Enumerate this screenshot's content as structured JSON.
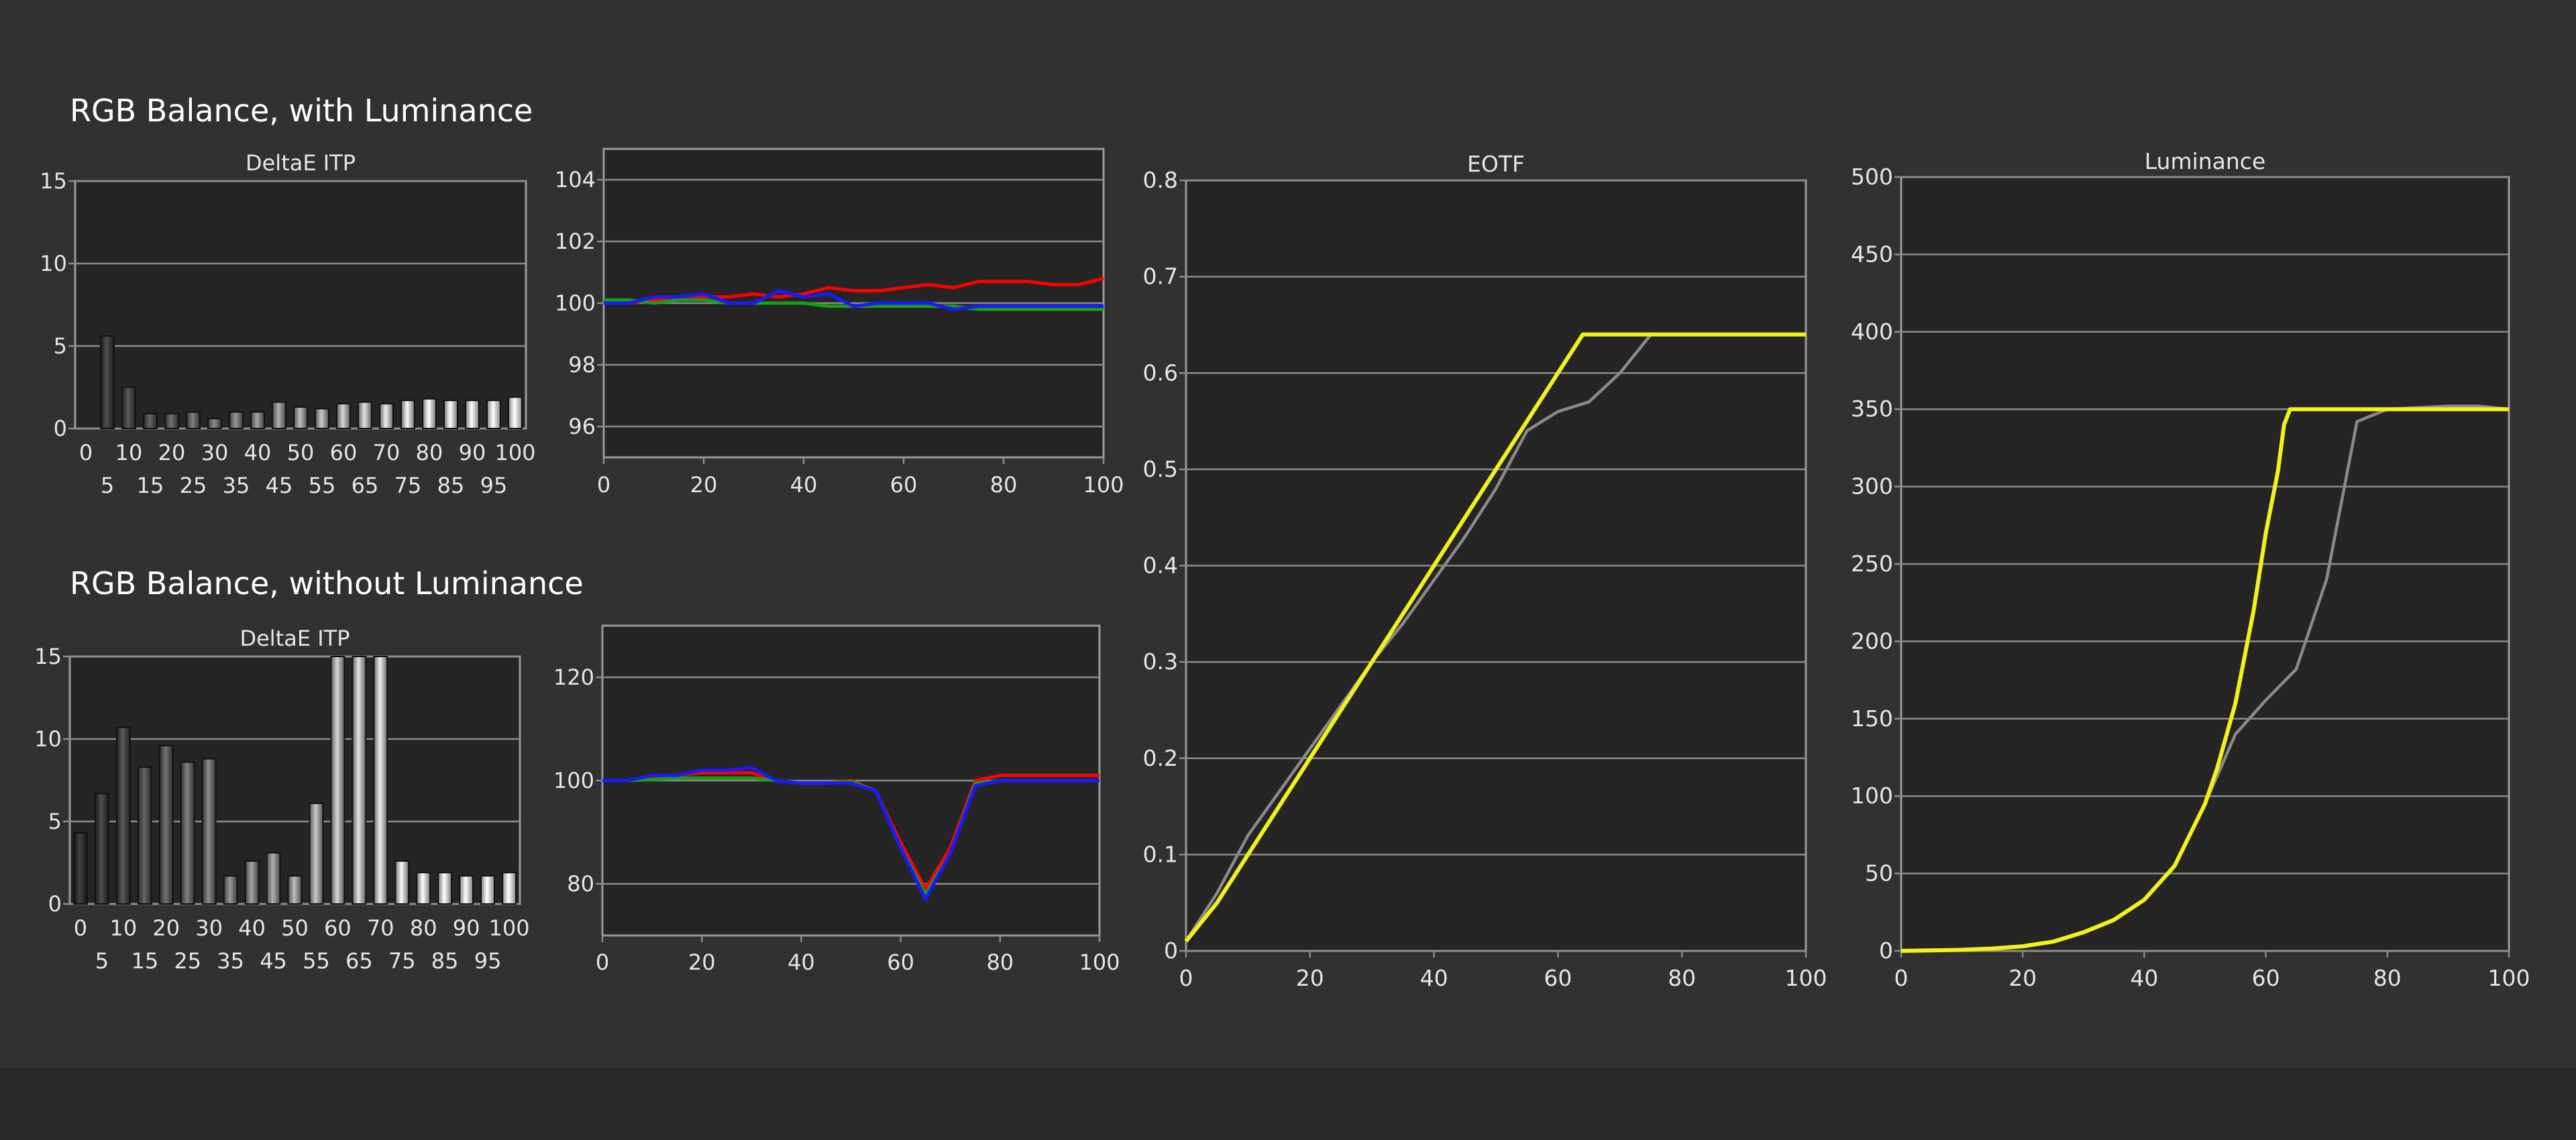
{
  "sections": {
    "with_luminance": "RGB Balance, with Luminance",
    "without_luminance": "RGB Balance, without Luminance"
  },
  "colors": {
    "background": "#313131",
    "plot_bg": "#252525",
    "grid": "#8c8c8c",
    "text": "#e6e6e6",
    "red": "#ff0000",
    "green": "#16a016",
    "blue": "#1a1aff",
    "yellow": "#f2f21a",
    "gray": "#8a8a8a"
  },
  "chart_data": [
    {
      "id": "deltae-with",
      "type": "bar",
      "title": "DeltaE ITP",
      "categories": [
        0,
        5,
        10,
        15,
        20,
        25,
        30,
        35,
        40,
        45,
        50,
        55,
        60,
        65,
        70,
        75,
        80,
        85,
        90,
        95,
        100
      ],
      "values": [
        0,
        5.6,
        2.5,
        0.9,
        0.9,
        1.0,
        0.6,
        1.0,
        1.0,
        1.6,
        1.3,
        1.2,
        1.5,
        1.6,
        1.5,
        1.7,
        1.8,
        1.7,
        1.7,
        1.7,
        1.9
      ],
      "ylim": [
        0,
        15
      ],
      "yticks": [
        0,
        5,
        10,
        15
      ],
      "xticks_top": [
        0,
        10,
        20,
        30,
        40,
        50,
        60,
        70,
        80,
        90,
        100
      ],
      "xticks_bottom": [
        5,
        15,
        25,
        35,
        45,
        55,
        65,
        75,
        85,
        95
      ],
      "grid": true
    },
    {
      "id": "rgb-with",
      "type": "line",
      "x": [
        0,
        5,
        10,
        15,
        20,
        25,
        30,
        35,
        40,
        45,
        50,
        55,
        60,
        65,
        70,
        75,
        80,
        85,
        90,
        95,
        100
      ],
      "series": [
        {
          "color": "red",
          "values": [
            100,
            100,
            100.1,
            100.2,
            100.2,
            100.2,
            100.3,
            100.2,
            100.3,
            100.5,
            100.4,
            100.4,
            100.5,
            100.6,
            100.5,
            100.7,
            100.7,
            100.7,
            100.6,
            100.6,
            100.8
          ]
        },
        {
          "color": "green",
          "values": [
            100.1,
            100.1,
            100,
            100.1,
            100.1,
            100,
            100,
            100,
            100,
            99.9,
            99.9,
            99.9,
            99.9,
            99.9,
            99.9,
            99.8,
            99.8,
            99.8,
            99.8,
            99.8,
            99.8
          ]
        },
        {
          "color": "blue",
          "values": [
            100,
            100,
            100.2,
            100.2,
            100.3,
            100,
            100,
            100.4,
            100.2,
            100.3,
            99.9,
            100,
            100,
            100,
            99.8,
            99.9,
            99.9,
            99.9,
            99.9,
            99.9,
            99.9
          ]
        }
      ],
      "xlim": [
        0,
        100
      ],
      "ylim": [
        95,
        105
      ],
      "yticks": [
        96,
        98,
        100,
        102,
        104
      ],
      "xticks": [
        0,
        20,
        40,
        60,
        80,
        100
      ],
      "grid": true
    },
    {
      "id": "deltae-without",
      "type": "bar",
      "title": "DeltaE ITP",
      "categories": [
        0,
        5,
        10,
        15,
        20,
        25,
        30,
        35,
        40,
        45,
        50,
        55,
        60,
        65,
        70,
        75,
        80,
        85,
        90,
        95,
        100
      ],
      "values": [
        4.3,
        6.7,
        10.7,
        8.3,
        9.6,
        8.6,
        8.8,
        1.7,
        2.6,
        3.1,
        1.7,
        6.1,
        15,
        15,
        15,
        2.6,
        1.9,
        1.9,
        1.7,
        1.7,
        1.9
      ],
      "ylim": [
        0,
        15
      ],
      "yticks": [
        0,
        5,
        10,
        15
      ],
      "xticks_top": [
        0,
        10,
        20,
        30,
        40,
        50,
        60,
        70,
        80,
        90,
        100
      ],
      "xticks_bottom": [
        5,
        15,
        25,
        35,
        45,
        55,
        65,
        75,
        85,
        95
      ],
      "grid": true
    },
    {
      "id": "rgb-without",
      "type": "line",
      "x": [
        0,
        5,
        10,
        15,
        20,
        25,
        30,
        35,
        40,
        45,
        50,
        55,
        60,
        65,
        70,
        75,
        80,
        85,
        90,
        95,
        100
      ],
      "series": [
        {
          "color": "red",
          "values": [
            100,
            100,
            100.5,
            101,
            101.5,
            101.5,
            101.5,
            100,
            99.5,
            99.5,
            100,
            98,
            88,
            79,
            87,
            100,
            101,
            101,
            101,
            101,
            101
          ]
        },
        {
          "color": "green",
          "values": [
            100,
            100,
            100.2,
            100.5,
            100.5,
            100.5,
            100.5,
            100,
            99.5,
            99.5,
            99.8,
            98,
            87,
            78,
            86,
            99.5,
            100,
            100,
            100,
            100,
            100
          ]
        },
        {
          "color": "blue",
          "values": [
            100,
            100,
            101,
            101,
            102,
            102,
            102.5,
            100,
            99.5,
            99.5,
            99.5,
            98,
            87,
            77,
            86,
            99,
            100,
            100,
            100,
            100,
            100
          ]
        }
      ],
      "xlim": [
        0,
        100
      ],
      "ylim": [
        70,
        130
      ],
      "yticks": [
        80,
        100,
        120
      ],
      "xticks": [
        0,
        20,
        40,
        60,
        80,
        100
      ],
      "grid": true
    },
    {
      "id": "eotf",
      "type": "line",
      "title": "EOTF",
      "series": [
        {
          "color": "gray",
          "x": [
            0,
            5,
            10,
            15,
            20,
            25,
            30,
            35,
            40,
            45,
            50,
            55,
            60,
            65,
            70,
            75,
            80,
            85,
            90,
            95,
            100
          ],
          "values": [
            0.01,
            0.06,
            0.12,
            0.165,
            0.21,
            0.255,
            0.3,
            0.34,
            0.385,
            0.43,
            0.48,
            0.54,
            0.56,
            0.57,
            0.6,
            0.64,
            0.64,
            0.64,
            0.64,
            0.64,
            0.64
          ]
        },
        {
          "color": "yellow",
          "x": [
            0,
            5,
            10,
            15,
            20,
            25,
            30,
            35,
            40,
            45,
            50,
            55,
            60,
            63,
            64,
            65,
            70,
            75,
            80,
            85,
            90,
            95,
            100
          ],
          "values": [
            0.01,
            0.05,
            0.1,
            0.15,
            0.2,
            0.25,
            0.3,
            0.35,
            0.4,
            0.45,
            0.5,
            0.55,
            0.6,
            0.63,
            0.64,
            0.64,
            0.64,
            0.64,
            0.64,
            0.64,
            0.64,
            0.64,
            0.64
          ]
        }
      ],
      "xlim": [
        0,
        100
      ],
      "ylim": [
        0,
        0.8
      ],
      "yticks": [
        0,
        0.1,
        0.2,
        0.3,
        0.4,
        0.5,
        0.6,
        0.7,
        0.8
      ],
      "xticks": [
        0,
        20,
        40,
        60,
        80,
        100
      ],
      "grid": true
    },
    {
      "id": "luminance",
      "type": "line",
      "title": "Luminance",
      "series": [
        {
          "color": "gray",
          "x": [
            0,
            5,
            10,
            15,
            20,
            25,
            30,
            35,
            40,
            45,
            50,
            55,
            60,
            65,
            70,
            75,
            80,
            85,
            90,
            95,
            100
          ],
          "values": [
            0,
            0.3,
            0.7,
            1.5,
            3,
            6,
            12,
            20,
            33,
            55,
            95,
            140,
            162,
            182,
            240,
            342,
            350,
            351,
            352,
            352,
            350
          ]
        },
        {
          "color": "yellow",
          "x": [
            0,
            5,
            10,
            15,
            20,
            25,
            30,
            35,
            40,
            45,
            50,
            52,
            55,
            58,
            60,
            62,
            63,
            64,
            65,
            70,
            75,
            80,
            85,
            90,
            95,
            100
          ],
          "values": [
            0,
            0.3,
            0.7,
            1.5,
            3,
            6,
            12,
            20,
            33,
            55,
            95,
            118,
            160,
            220,
            270,
            310,
            340,
            350,
            350,
            350,
            350,
            350,
            350,
            350,
            350,
            350
          ]
        }
      ],
      "xlim": [
        0,
        100
      ],
      "ylim": [
        0,
        500
      ],
      "yticks": [
        0,
        50,
        100,
        150,
        200,
        250,
        300,
        350,
        400,
        450,
        500
      ],
      "xticks": [
        0,
        20,
        40,
        60,
        80,
        100
      ],
      "grid": true
    }
  ]
}
